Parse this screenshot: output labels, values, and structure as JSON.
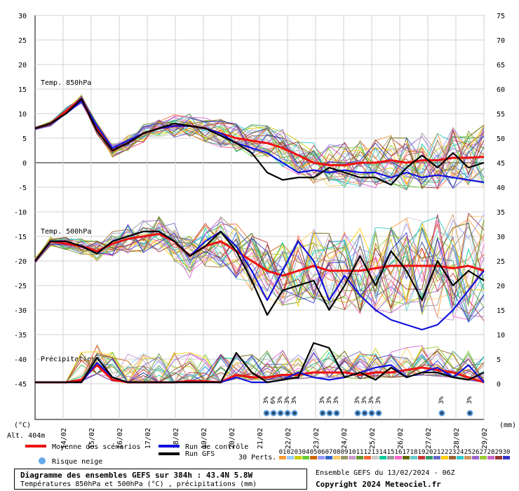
{
  "chart_data": {
    "type": "line",
    "left_axis": {
      "unit": "(°C)",
      "ticks": [
        30,
        25,
        20,
        15,
        10,
        5,
        0,
        -5,
        -10,
        -15,
        -20,
        -25,
        -30,
        -35,
        -40,
        -45
      ]
    },
    "right_axis": {
      "unit": "(mm)",
      "ticks": [
        75,
        70,
        65,
        60,
        55,
        50,
        45,
        40,
        35,
        30,
        25,
        20,
        15,
        10,
        5,
        0
      ]
    },
    "x_ticks": [
      "14/02",
      "15/02",
      "16/02",
      "17/02",
      "18/02",
      "19/02",
      "20/02",
      "21/02",
      "22/02",
      "23/02",
      "24/02",
      "25/02",
      "26/02",
      "27/02",
      "28/02",
      "29/02"
    ],
    "altitude": "Alt. 404m",
    "panel_labels": {
      "t850": "Temp. 850hPa",
      "t500": "Temp. 500hPa",
      "precip": "Précipitations"
    },
    "grid": true,
    "series": [
      {
        "name": "Moyenne des scénarios",
        "color": "#ee1111",
        "group": "t850",
        "values": [
          7,
          8,
          10.5,
          13,
          7,
          2.5,
          4,
          6,
          7,
          7.5,
          7.5,
          7,
          6,
          5,
          4.5,
          4,
          3,
          1.5,
          0,
          -0.5,
          -0.5,
          0,
          0,
          0.5,
          0,
          0.5,
          0.5,
          1,
          1,
          1.2
        ]
      },
      {
        "name": "Run de contrôle",
        "color": "#1111dd",
        "group": "t850",
        "values": [
          7,
          8,
          10,
          12.5,
          7.5,
          3,
          4.5,
          6,
          7,
          7.5,
          7.5,
          7,
          6,
          4,
          3,
          2,
          0,
          -2,
          -1.5,
          -2,
          -1.5,
          -2,
          -2,
          -3,
          -2,
          -3,
          -2.5,
          -3,
          -3.5,
          -4
        ]
      },
      {
        "name": "Run GFS",
        "color": "#000000",
        "group": "t850",
        "values": [
          7,
          8,
          10,
          13,
          6.5,
          2.5,
          4,
          6,
          7,
          8,
          7.5,
          7,
          5.5,
          4,
          2,
          -2,
          -3.5,
          -3,
          -3,
          -1,
          -2,
          -3,
          -3,
          -4.5,
          -1,
          1.5,
          -1,
          2,
          -1,
          0
        ]
      },
      {
        "name": "Moyenne des scénarios",
        "color": "#ee1111",
        "group": "t500",
        "values": [
          -20,
          -16,
          -16.5,
          -17,
          -18,
          -16.5,
          -15.5,
          -15,
          -14.5,
          -16,
          -19,
          -17,
          -16,
          -18,
          -20,
          -22,
          -23,
          -22,
          -21,
          -22,
          -22,
          -22,
          -21.5,
          -21,
          -21,
          -21,
          -21,
          -21.5,
          -21,
          -22
        ]
      },
      {
        "name": "Run de contrôle",
        "color": "#1111dd",
        "group": "t500",
        "values": [
          -20,
          -16,
          -16,
          -17,
          -18.5,
          -16,
          -15,
          -14,
          -14,
          -16,
          -19,
          -16,
          -14,
          -17,
          -22,
          -28,
          -22,
          -16,
          -20,
          -28,
          -23,
          -27,
          -30,
          -32,
          -33,
          -34,
          -33,
          -30,
          -26,
          -22
        ]
      },
      {
        "name": "Run GFS",
        "color": "#000000",
        "group": "t500",
        "values": [
          -20,
          -16,
          -16,
          -17,
          -18.5,
          -16,
          -15,
          -14,
          -14,
          -16,
          -19,
          -17,
          -14,
          -18,
          -24,
          -31,
          -26,
          -25,
          -24,
          -30,
          -25,
          -19,
          -25,
          -18,
          -22,
          -28,
          -20,
          -25,
          -22,
          -24
        ]
      },
      {
        "name": "Moyenne des scénarios",
        "color": "#ee1111",
        "group": "precip",
        "values": [
          0,
          0,
          0,
          0.5,
          3.5,
          0.5,
          0,
          0,
          0,
          0,
          0.3,
          0.2,
          0,
          1.5,
          1,
          1,
          1.5,
          1.5,
          2,
          2,
          2,
          1.5,
          2,
          2,
          2.5,
          3,
          2.5,
          2,
          1,
          0
        ]
      },
      {
        "name": "Run de contrôle",
        "color": "#1111dd",
        "group": "precip",
        "values": [
          0,
          0,
          0,
          0,
          4,
          1,
          0,
          0,
          0,
          0,
          0,
          0,
          0,
          1,
          0,
          0,
          0.5,
          2,
          1,
          0.5,
          1,
          2,
          3,
          3.5,
          1,
          2,
          3,
          1,
          3.5,
          0
        ]
      },
      {
        "name": "Run GFS",
        "color": "#000000",
        "group": "precip",
        "values": [
          0,
          0,
          0,
          0,
          5,
          1,
          0,
          0,
          0,
          0,
          0,
          0,
          0,
          6,
          2,
          0,
          0.5,
          1,
          8,
          7,
          1,
          2,
          0.5,
          3,
          1,
          2,
          2,
          1,
          0.5,
          2
        ]
      }
    ],
    "members_count": "30 Perts.",
    "member_ids": [
      "01",
      "02",
      "03",
      "04",
      "05",
      "06",
      "07",
      "08",
      "09",
      "10",
      "11",
      "12",
      "13",
      "14",
      "15",
      "16",
      "17",
      "18",
      "19",
      "20",
      "21",
      "22",
      "23",
      "24",
      "25",
      "26",
      "27",
      "28",
      "29",
      "30"
    ],
    "member_colors": [
      "#ff9933",
      "#99ccff",
      "#cccc00",
      "#66cc33",
      "#cc6600",
      "#9999ff",
      "#3366cc",
      "#ffcc66",
      "#999966",
      "#cc99cc",
      "#669933",
      "#ff6633",
      "#cccccc",
      "#00cc99",
      "#999999",
      "#ff66cc",
      "#666600",
      "#66cccc",
      "#cc3333",
      "#339966",
      "#6666cc",
      "#ffcc00",
      "#996633",
      "#33cccc",
      "#cc9966",
      "#9966cc",
      "#99cc33",
      "#cc66cc",
      "#993333",
      "#3333cc"
    ],
    "snow_risk_labels": [
      "3%",
      "6%",
      "3%",
      "3%",
      "3%",
      "3%",
      "3%",
      "3%",
      "3%",
      "3%",
      "3%",
      "3%",
      "3%",
      "3%"
    ],
    "snow_risk_positions": [
      8.5,
      8.75,
      9.0,
      9.25,
      9.5,
      10.5,
      10.75,
      11.0,
      11.75,
      12.0,
      12.25,
      12.5,
      14.75,
      15.75
    ]
  },
  "legend": {
    "mean": "Moyenne des scénarios",
    "control": "Run de contrôle",
    "gfs": "Run GFS",
    "snow": "Risque neige",
    "perts": "30 Perts."
  },
  "footer": {
    "title": "Diagramme des ensembles GEFS sur 384h : 43.4N 5.8W",
    "subtitle": "Températures 850hPa et 500hPa (°C) , précipitations (mm)",
    "ensemble": "Ensemble GEFS du 13/02/2024 - 06Z",
    "copyright": "Copyright 2024 Meteociel.fr"
  },
  "colors": {
    "mean": "#ee1111",
    "control": "#1111dd",
    "gfs": "#000000",
    "snow": "#66aaee"
  }
}
